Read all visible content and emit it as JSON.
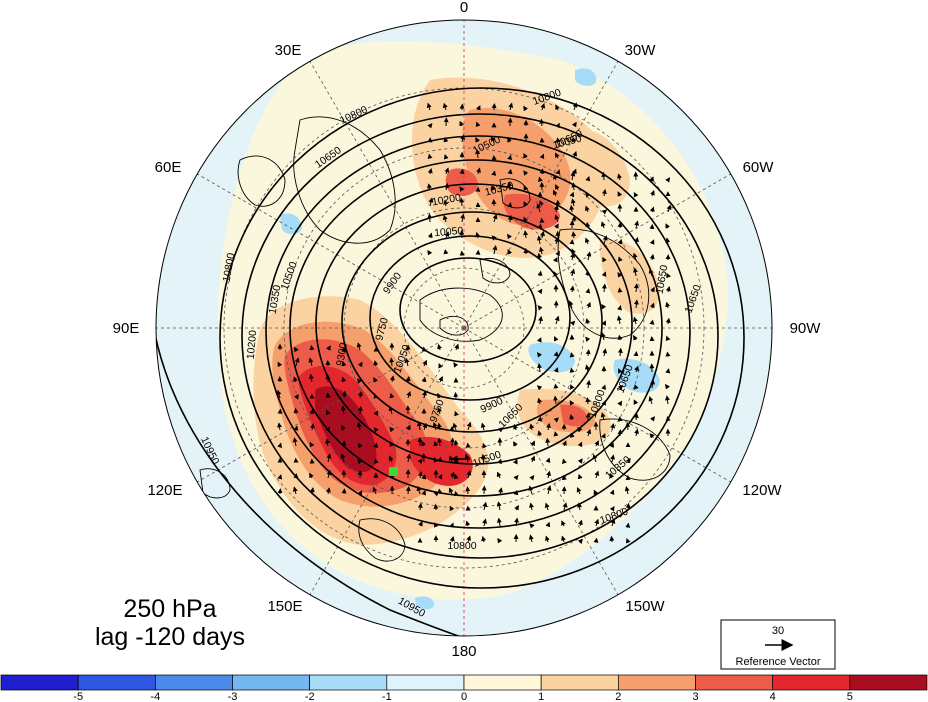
{
  "title": {
    "line1": "250 hPa",
    "line2": "lag -120 days"
  },
  "longitude_labels": [
    {
      "key": "0",
      "text": "0"
    },
    {
      "key": "30w",
      "text": "30W"
    },
    {
      "key": "60w",
      "text": "60W"
    },
    {
      "key": "90w",
      "text": "90W"
    },
    {
      "key": "120w",
      "text": "120W"
    },
    {
      "key": "150w",
      "text": "150W"
    },
    {
      "key": "180",
      "text": "180"
    },
    {
      "key": "150e",
      "text": "150E"
    },
    {
      "key": "120e",
      "text": "120E"
    },
    {
      "key": "90e",
      "text": "90E"
    },
    {
      "key": "60e",
      "text": "60E"
    },
    {
      "key": "30e",
      "text": "30E"
    }
  ],
  "contour_labels": [
    "10800",
    "10650",
    "10500",
    "10350",
    "10200",
    "10050",
    "9900",
    "9750",
    "10800",
    "10650",
    "10500",
    "10350",
    "10200",
    "10050",
    "9900",
    "9750",
    "10650",
    "10800",
    "10650",
    "10500",
    "10350",
    "10050",
    "10650",
    "10800",
    "10950",
    "10950",
    "10650",
    "10800",
    "10800",
    "9300"
  ],
  "reference_vector": {
    "value": "30",
    "label": "Reference Vector"
  },
  "colorbar": {
    "tick_labels": [
      "-5",
      "-4",
      "-3",
      "-2",
      "-1",
      "0",
      "1",
      "2",
      "3",
      "4",
      "5"
    ],
    "colors": [
      "#1f1fd0",
      "#2f56e0",
      "#4a8ae8",
      "#73b8f2",
      "#a6dcf7",
      "#dff3fa",
      "#fff7d8",
      "#fbd3a2",
      "#f5a06c",
      "#ec5c48",
      "#e3272d",
      "#a80d20"
    ]
  },
  "colors": {
    "base_anomaly": "#e4f3f8",
    "marker": "#33dd33",
    "contour": "#000000",
    "meridian_zero": "#cc3366"
  }
}
